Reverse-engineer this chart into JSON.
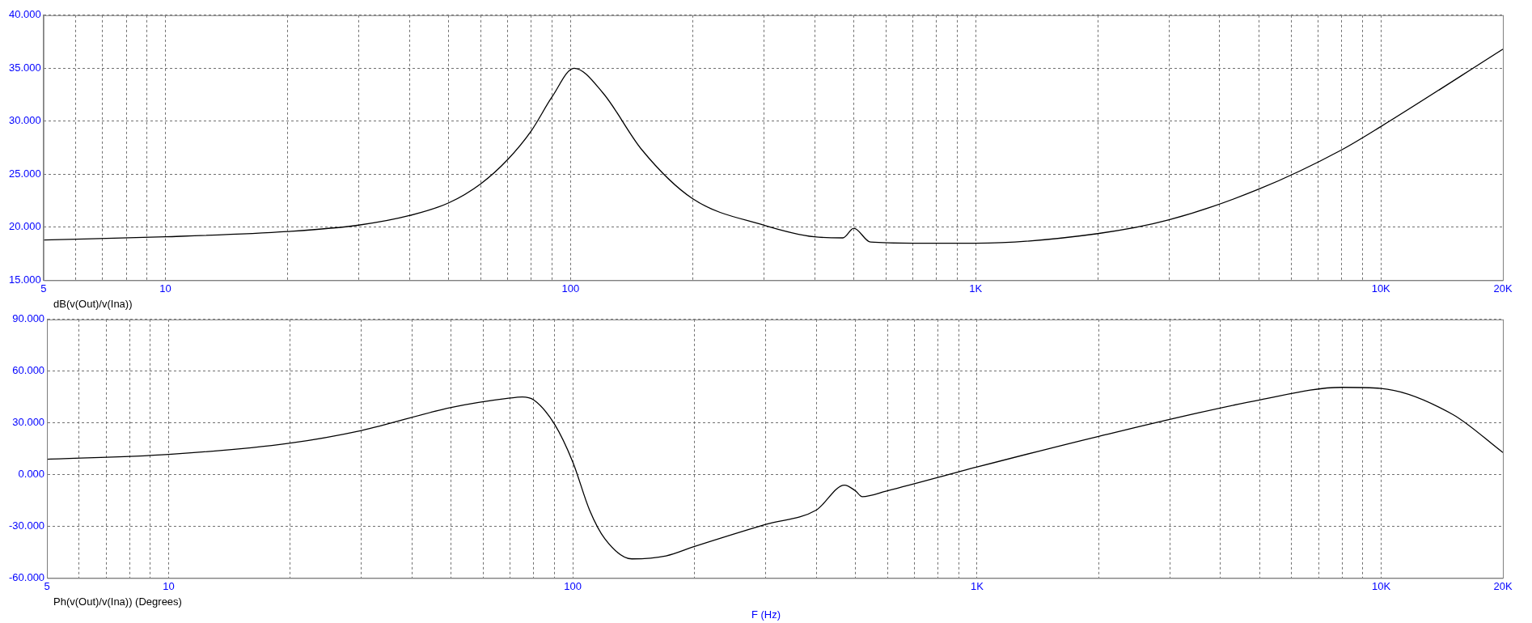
{
  "chart_data": [
    {
      "type": "line",
      "annotations": [
        "dB(v(Out)/v(Ina))"
      ],
      "log": "x",
      "grid": true,
      "marker": "none",
      "line_style": "solid",
      "x": [
        5,
        10,
        20,
        30,
        40,
        50,
        60,
        70,
        80,
        90,
        102,
        120,
        150,
        200,
        300,
        400,
        470,
        500,
        550,
        700,
        1000,
        2000,
        3000,
        5000,
        8000,
        10000,
        20000
      ],
      "series": [
        {
          "color": "#000000",
          "values": [
            18.8,
            19.1,
            19.6,
            20.2,
            21.1,
            22.3,
            24.1,
            26.4,
            29.1,
            32.3,
            35.0,
            32.7,
            27.3,
            22.7,
            20.2,
            19.1,
            19.0,
            19.9,
            18.6,
            18.5,
            18.5,
            19.4,
            20.7,
            23.6,
            27.3,
            29.5,
            36.8
          ]
        }
      ],
      "xlim": [
        5,
        20000
      ],
      "xticks": [
        5,
        {
          "value": 6,
          "label": null
        },
        {
          "value": 7,
          "label": null
        },
        {
          "value": 8,
          "label": null
        },
        {
          "value": 9,
          "label": null
        },
        10,
        {
          "value": 20,
          "label": null
        },
        {
          "value": 30,
          "label": null
        },
        {
          "value": 40,
          "label": null
        },
        {
          "value": 50,
          "label": null
        },
        {
          "value": 60,
          "label": null
        },
        {
          "value": 70,
          "label": null
        },
        {
          "value": 80,
          "label": null
        },
        {
          "value": 90,
          "label": null
        },
        100,
        {
          "value": 200,
          "label": null
        },
        {
          "value": 300,
          "label": null
        },
        {
          "value": 400,
          "label": null
        },
        {
          "value": 500,
          "label": null
        },
        {
          "value": 600,
          "label": null
        },
        {
          "value": 700,
          "label": null
        },
        {
          "value": 800,
          "label": null
        },
        {
          "value": 900,
          "label": null
        },
        {
          "value": 1000,
          "label": "1K"
        },
        {
          "value": 2000,
          "label": null
        },
        {
          "value": 3000,
          "label": null
        },
        {
          "value": 4000,
          "label": null
        },
        {
          "value": 5000,
          "label": null
        },
        {
          "value": 6000,
          "label": null
        },
        {
          "value": 7000,
          "label": null
        },
        {
          "value": 8000,
          "label": null
        },
        {
          "value": 9000,
          "label": null
        },
        {
          "value": 10000,
          "label": "10K"
        },
        {
          "value": 20000,
          "label": "20K"
        }
      ],
      "ylim": [
        15,
        40
      ],
      "yticks": [
        {
          "value": 15,
          "label": "15.000"
        },
        {
          "value": 20,
          "label": "20.000"
        },
        {
          "value": 25,
          "label": "25.000"
        },
        {
          "value": 30,
          "label": "30.000"
        },
        {
          "value": 35,
          "label": "35.000"
        },
        {
          "value": 40,
          "label": "40.000"
        }
      ]
    },
    {
      "type": "line",
      "annotations": [
        "Ph(v(Out)/v(Ina)) (Degrees)"
      ],
      "xlabel": "F (Hz)",
      "log": "x",
      "grid": true,
      "marker": "none",
      "line_style": "solid",
      "x": [
        5,
        10,
        20,
        30,
        50,
        70,
        75,
        80,
        90,
        100,
        110,
        120,
        140,
        170,
        200,
        300,
        400,
        470,
        500,
        520,
        600,
        1000,
        2000,
        5000,
        8000,
        10000,
        15000,
        20000
      ],
      "series": [
        {
          "color": "#000000",
          "values": [
            8.9,
            11.7,
            18.3,
            25.6,
            38.9,
            44.4,
            45,
            43.3,
            29.4,
            7.2,
            -20.6,
            -37.2,
            -48.9,
            -47.2,
            -41.7,
            -28.9,
            -20.6,
            -6.1,
            -9.4,
            -12.8,
            -9.4,
            4.4,
            22.2,
            43.3,
            50.6,
            50,
            35,
            12.8
          ]
        }
      ],
      "xlim": [
        5,
        20000
      ],
      "xticks": [
        5,
        {
          "value": 6,
          "label": null
        },
        {
          "value": 7,
          "label": null
        },
        {
          "value": 8,
          "label": null
        },
        {
          "value": 9,
          "label": null
        },
        10,
        {
          "value": 20,
          "label": null
        },
        {
          "value": 30,
          "label": null
        },
        {
          "value": 40,
          "label": null
        },
        {
          "value": 50,
          "label": null
        },
        {
          "value": 60,
          "label": null
        },
        {
          "value": 70,
          "label": null
        },
        {
          "value": 80,
          "label": null
        },
        {
          "value": 90,
          "label": null
        },
        100,
        {
          "value": 200,
          "label": null
        },
        {
          "value": 300,
          "label": null
        },
        {
          "value": 400,
          "label": null
        },
        {
          "value": 500,
          "label": null
        },
        {
          "value": 600,
          "label": null
        },
        {
          "value": 700,
          "label": null
        },
        {
          "value": 800,
          "label": null
        },
        {
          "value": 900,
          "label": null
        },
        {
          "value": 1000,
          "label": "1K"
        },
        {
          "value": 2000,
          "label": null
        },
        {
          "value": 3000,
          "label": null
        },
        {
          "value": 4000,
          "label": null
        },
        {
          "value": 5000,
          "label": null
        },
        {
          "value": 6000,
          "label": null
        },
        {
          "value": 7000,
          "label": null
        },
        {
          "value": 8000,
          "label": null
        },
        {
          "value": 9000,
          "label": null
        },
        {
          "value": 10000,
          "label": "10K"
        },
        {
          "value": 20000,
          "label": "20K"
        }
      ],
      "ylim": [
        -60,
        90
      ],
      "yticks": [
        {
          "value": -60,
          "label": "-60.000"
        },
        {
          "value": -30,
          "label": "-30.000"
        },
        {
          "value": 0,
          "label": "0.000"
        },
        {
          "value": 30,
          "label": "30.000"
        },
        {
          "value": 60,
          "label": "60.000"
        },
        {
          "value": 90,
          "label": "90.000"
        }
      ]
    }
  ]
}
